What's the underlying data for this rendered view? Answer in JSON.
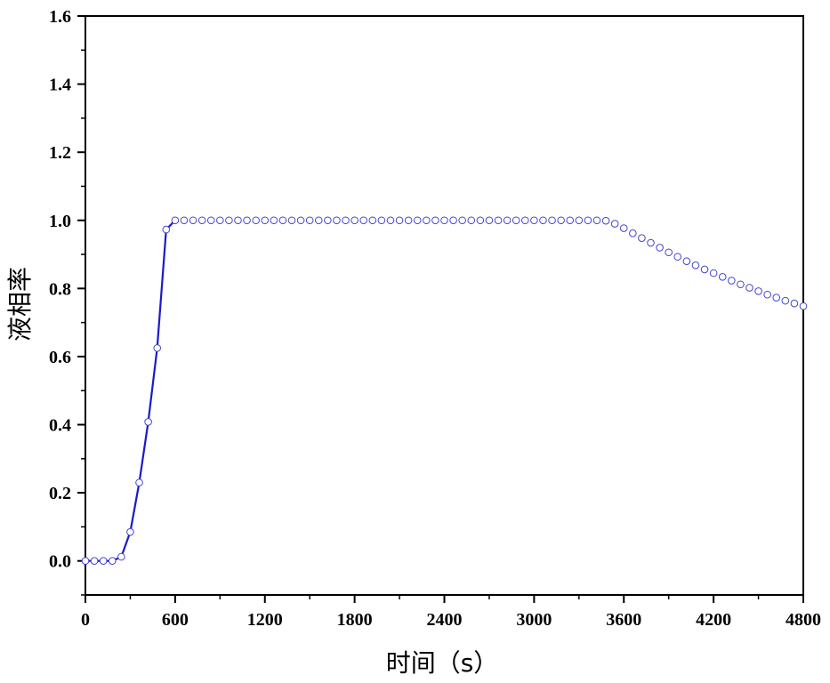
{
  "chart_data": {
    "type": "line",
    "xlabel": "时间（s）",
    "ylabel": "液相率",
    "xlim": [
      0,
      4800
    ],
    "ylim": [
      -0.1,
      1.6
    ],
    "x_ticks": [
      0,
      600,
      1200,
      1800,
      2400,
      3000,
      3600,
      4200,
      4800
    ],
    "x_tick_labels": [
      "0",
      "600",
      "1200",
      "1800",
      "2400",
      "3000",
      "3600",
      "4200",
      "4800"
    ],
    "y_ticks": [
      0.0,
      0.2,
      0.4,
      0.6,
      0.8,
      1.0,
      1.2,
      1.4,
      1.6
    ],
    "y_tick_labels": [
      "0.0",
      "0.2",
      "0.4",
      "0.6",
      "0.8",
      "1.0",
      "1.2",
      "1.4",
      "1.6"
    ],
    "grid": false,
    "colors": {
      "line": "#1a1acc",
      "marker": "#4444cc"
    },
    "series": [
      {
        "style": "line",
        "x": [
          0,
          60,
          120,
          180,
          240,
          300,
          360,
          420,
          480,
          540,
          600
        ],
        "values": [
          0.0,
          0.0,
          0.0,
          0.0,
          0.012,
          0.085,
          0.23,
          0.408,
          0.625,
          0.973,
          1.0
        ]
      },
      {
        "style": "markers",
        "x": [
          0,
          60,
          120,
          180,
          240,
          300,
          360,
          420,
          480,
          540,
          600,
          660,
          720,
          780,
          840,
          900,
          960,
          1020,
          1080,
          1140,
          1200,
          1260,
          1320,
          1380,
          1440,
          1500,
          1560,
          1620,
          1680,
          1740,
          1800,
          1860,
          1920,
          1980,
          2040,
          2100,
          2160,
          2220,
          2280,
          2340,
          2400,
          2460,
          2520,
          2580,
          2640,
          2700,
          2760,
          2820,
          2880,
          2940,
          3000,
          3060,
          3120,
          3180,
          3240,
          3300,
          3360,
          3420,
          3480,
          3540,
          3600,
          3660,
          3720,
          3780,
          3840,
          3900,
          3960,
          4020,
          4080,
          4140,
          4200,
          4260,
          4320,
          4380,
          4440,
          4500,
          4560,
          4620,
          4680,
          4740,
          4800
        ],
        "values": [
          0.0,
          0.0,
          0.0,
          0.0,
          0.012,
          0.085,
          0.23,
          0.408,
          0.625,
          0.973,
          1.0,
          1.0,
          1.0,
          1.0,
          1.0,
          1.0,
          1.0,
          1.0,
          1.0,
          1.0,
          1.0,
          1.0,
          1.0,
          1.0,
          1.0,
          1.0,
          1.0,
          1.0,
          1.0,
          1.0,
          1.0,
          1.0,
          1.0,
          1.0,
          1.0,
          1.0,
          1.0,
          1.0,
          1.0,
          1.0,
          1.0,
          1.0,
          1.0,
          1.0,
          1.0,
          1.0,
          1.0,
          1.0,
          1.0,
          1.0,
          1.0,
          1.0,
          1.0,
          1.0,
          1.0,
          1.0,
          1.0,
          1.0,
          0.999,
          0.99,
          0.977,
          0.962,
          0.948,
          0.934,
          0.92,
          0.906,
          0.893,
          0.88,
          0.868,
          0.856,
          0.845,
          0.834,
          0.823,
          0.812,
          0.802,
          0.792,
          0.782,
          0.773,
          0.764,
          0.756,
          0.748
        ]
      }
    ]
  }
}
